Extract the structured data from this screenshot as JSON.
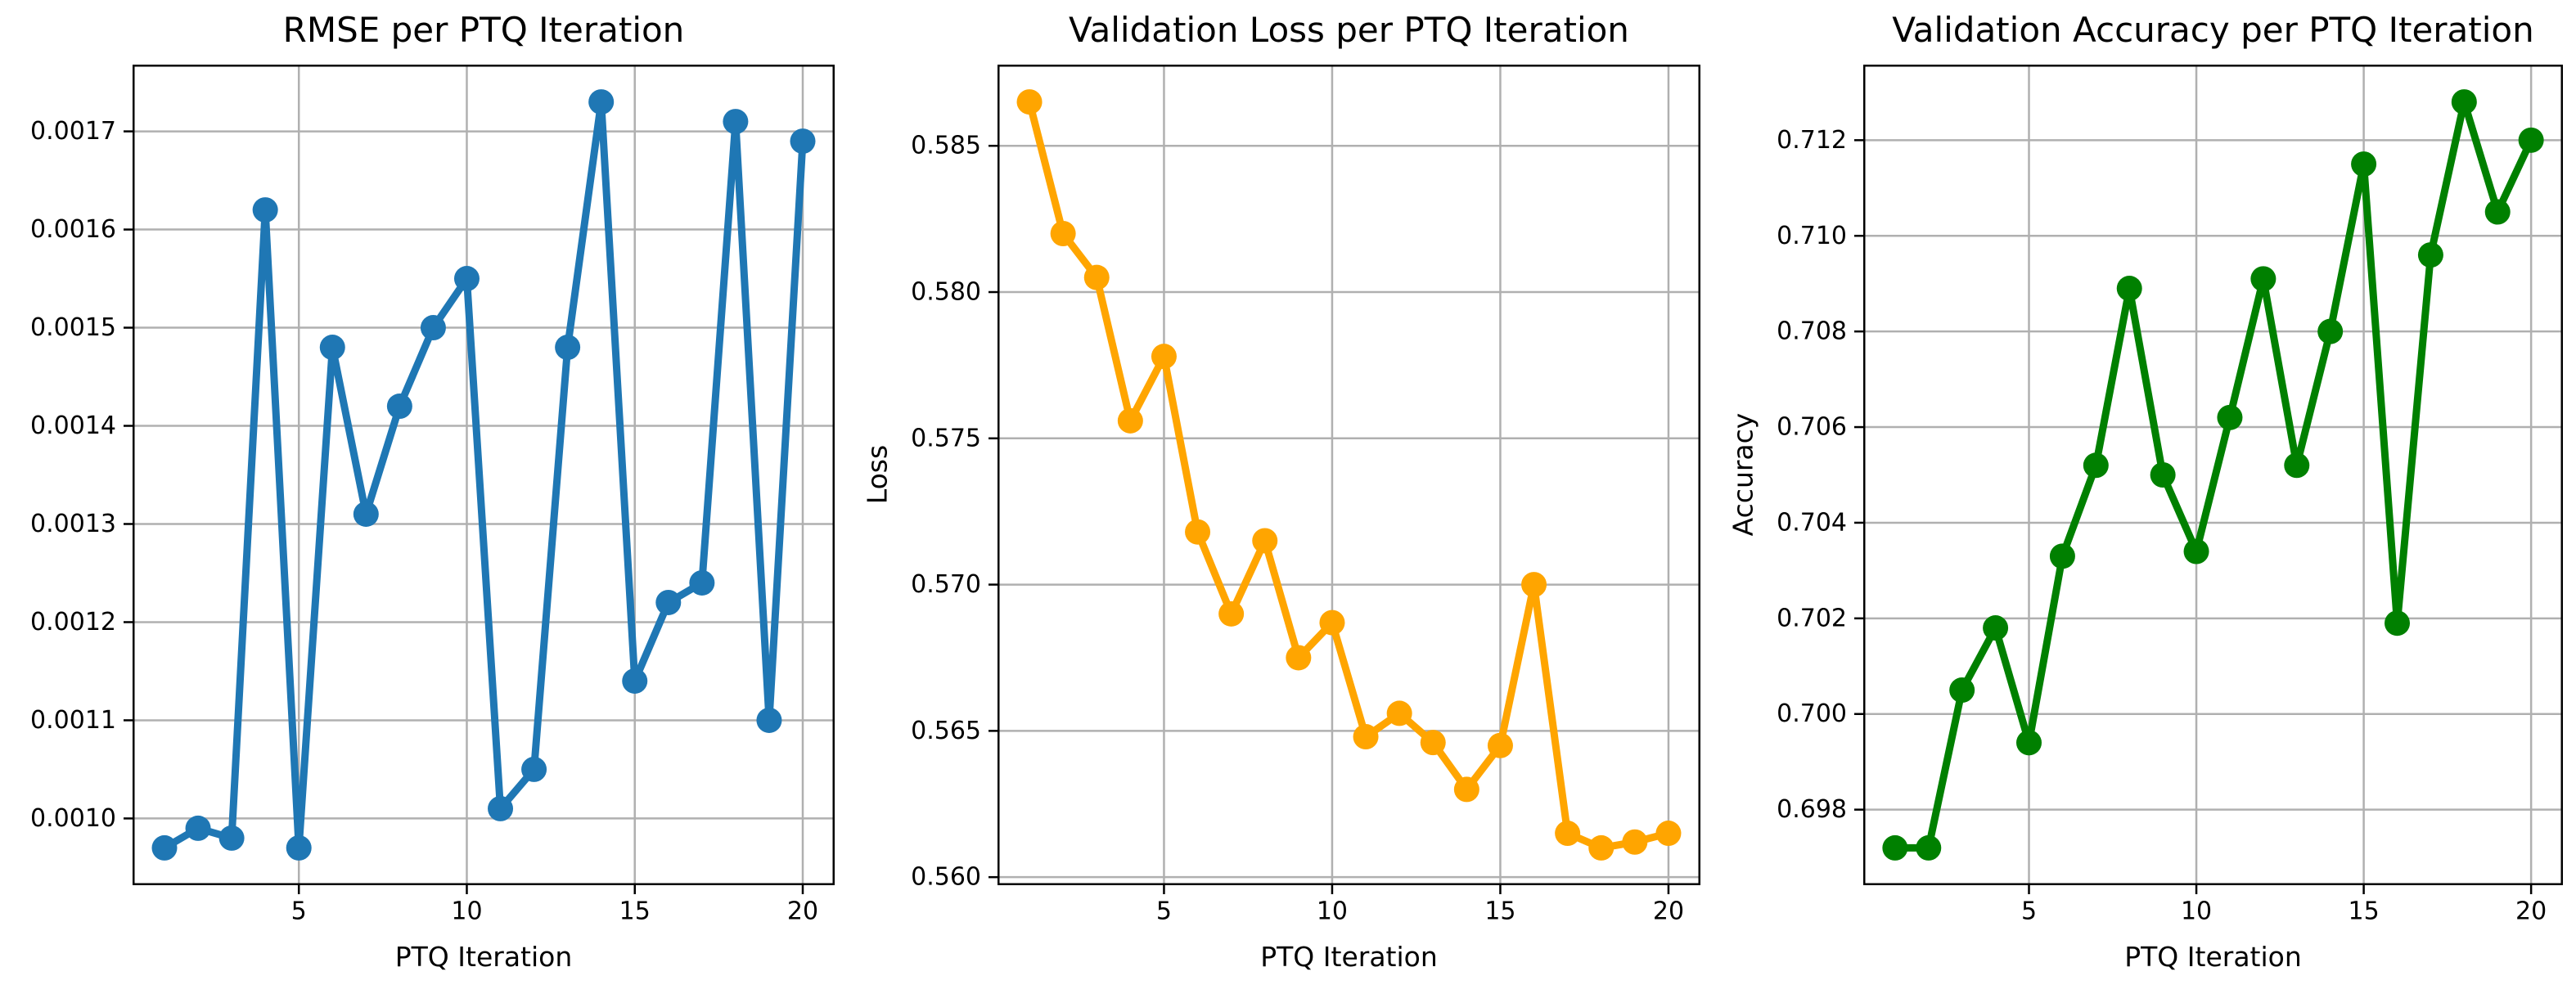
{
  "figure": {
    "background": "#ffffff",
    "grid_color": "#b0b0b0",
    "spine_color": "#000000",
    "text_color": "#000000"
  },
  "chart_data": [
    {
      "type": "line",
      "title": "RMSE per PTQ Iteration",
      "xlabel": "PTQ Iteration",
      "ylabel": "",
      "color": "#1f77b4",
      "marker": "o",
      "grid": true,
      "legend": "none",
      "x": [
        1,
        2,
        3,
        4,
        5,
        6,
        7,
        8,
        9,
        10,
        11,
        12,
        13,
        14,
        15,
        16,
        17,
        18,
        19,
        20
      ],
      "values": [
        0.00097,
        0.00099,
        0.00098,
        0.00162,
        0.00097,
        0.00148,
        0.00131,
        0.00142,
        0.0015,
        0.00155,
        0.00101,
        0.00105,
        0.00148,
        0.00173,
        0.00114,
        0.00122,
        0.00124,
        0.00171,
        0.0011,
        0.00169
      ],
      "xlim": [
        0.05,
        20.95
      ],
      "ylim": [
        0.000932,
        0.001768
      ],
      "xticks": [
        5,
        10,
        15,
        20
      ],
      "xtick_labels": [
        "5",
        "10",
        "15",
        "20"
      ],
      "yticks": [
        0.001,
        0.0011,
        0.0012,
        0.0013,
        0.0014,
        0.0015,
        0.0016,
        0.0017
      ],
      "ytick_labels": [
        "0.0010",
        "0.0011",
        "0.0012",
        "0.0013",
        "0.0014",
        "0.0015",
        "0.0016",
        "0.0017"
      ]
    },
    {
      "type": "line",
      "title": "Validation Loss per PTQ Iteration",
      "xlabel": "PTQ Iteration",
      "ylabel": "Loss",
      "color": "#ffa500",
      "marker": "o",
      "grid": true,
      "legend": "none",
      "x": [
        1,
        2,
        3,
        4,
        5,
        6,
        7,
        8,
        9,
        10,
        11,
        12,
        13,
        14,
        15,
        16,
        17,
        18,
        19,
        20
      ],
      "values": [
        0.5865,
        0.582,
        0.5805,
        0.5756,
        0.5778,
        0.5718,
        0.569,
        0.5715,
        0.5675,
        0.5687,
        0.5648,
        0.5656,
        0.5646,
        0.563,
        0.5645,
        0.57,
        0.5615,
        0.561,
        0.5612,
        0.5615
      ],
      "xlim": [
        0.05,
        20.95
      ],
      "ylim": [
        0.559725,
        0.587775
      ],
      "xticks": [
        5,
        10,
        15,
        20
      ],
      "xtick_labels": [
        "5",
        "10",
        "15",
        "20"
      ],
      "yticks": [
        0.56,
        0.565,
        0.57,
        0.575,
        0.58,
        0.585
      ],
      "ytick_labels": [
        "0.560",
        "0.565",
        "0.570",
        "0.575",
        "0.580",
        "0.585"
      ]
    },
    {
      "type": "line",
      "title": "Validation Accuracy per PTQ Iteration",
      "xlabel": "PTQ Iteration",
      "ylabel": "Accuracy",
      "color": "#008000",
      "marker": "o",
      "grid": true,
      "legend": "none",
      "x": [
        1,
        2,
        3,
        4,
        5,
        6,
        7,
        8,
        9,
        10,
        11,
        12,
        13,
        14,
        15,
        16,
        17,
        18,
        19,
        20
      ],
      "values": [
        0.6972,
        0.6972,
        0.7005,
        0.7018,
        0.6994,
        0.7033,
        0.7052,
        0.7089,
        0.705,
        0.7034,
        0.7062,
        0.7091,
        0.7052,
        0.708,
        0.7115,
        0.7019,
        0.7096,
        0.7128,
        0.7105,
        0.712
      ],
      "xlim": [
        0.05,
        20.95
      ],
      "ylim": [
        0.69642,
        0.71358
      ],
      "xticks": [
        5,
        10,
        15,
        20
      ],
      "xtick_labels": [
        "5",
        "10",
        "15",
        "20"
      ],
      "yticks": [
        0.698,
        0.7,
        0.702,
        0.704,
        0.706,
        0.708,
        0.71,
        0.712
      ],
      "ytick_labels": [
        "0.698",
        "0.700",
        "0.702",
        "0.704",
        "0.706",
        "0.708",
        "0.710",
        "0.712"
      ]
    }
  ]
}
